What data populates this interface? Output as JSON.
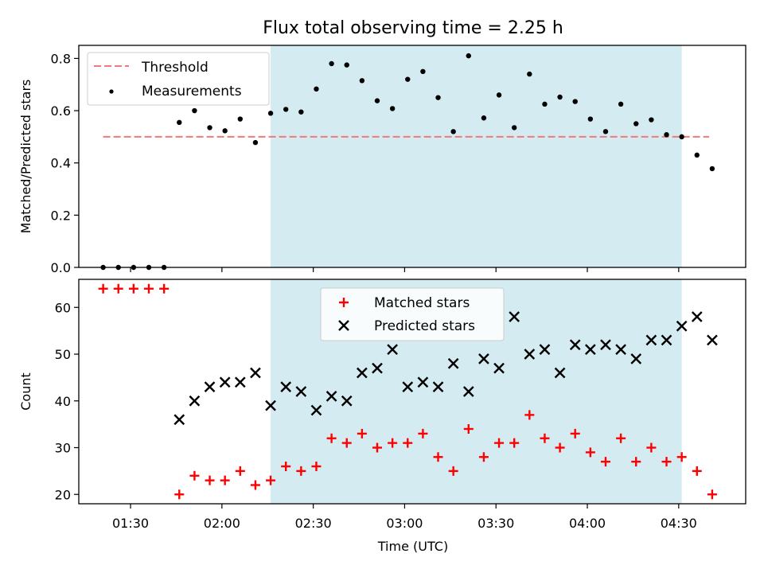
{
  "chart_data": {
    "title": "Flux total observing time = 2.25 h",
    "xlabel": "Time (UTC)",
    "x_unit": "UTC time of day",
    "xlim": [
      "01:13",
      "04:52"
    ],
    "xticks": [
      "01:30",
      "02:00",
      "02:30",
      "03:00",
      "03:30",
      "04:00",
      "04:30"
    ],
    "observing_window": {
      "start": "02:16",
      "end": "04:31",
      "color": "#d4ebf1"
    },
    "panels": [
      {
        "type": "scatter",
        "ylabel": "Matched/Predicted stars",
        "ylim": [
          0,
          0.85
        ],
        "yticks": [
          "0.0",
          "0.2",
          "0.4",
          "0.6",
          "0.8"
        ],
        "grid": false,
        "legend_position": "top-left",
        "threshold": {
          "name": "Threshold",
          "value": 0.5,
          "x_start": "01:21",
          "x_end": "04:40",
          "color": "#f07a7a"
        },
        "series": [
          {
            "name": "Measurements",
            "marker": "dot",
            "color": "#000000",
            "points": [
              [
                "01:21",
                0.0
              ],
              [
                "01:26",
                0.0
              ],
              [
                "01:31",
                0.0
              ],
              [
                "01:36",
                0.0
              ],
              [
                "01:41",
                0.0
              ],
              [
                "01:46",
                0.555
              ],
              [
                "01:51",
                0.6
              ],
              [
                "01:56",
                0.535
              ],
              [
                "02:01",
                0.523
              ],
              [
                "02:06",
                0.568
              ],
              [
                "02:11",
                0.478
              ],
              [
                "02:16",
                0.59
              ],
              [
                "02:21",
                0.605
              ],
              [
                "02:26",
                0.595
              ],
              [
                "02:31",
                0.683
              ],
              [
                "02:36",
                0.78
              ],
              [
                "02:41",
                0.775
              ],
              [
                "02:46",
                0.715
              ],
              [
                "02:51",
                0.638
              ],
              [
                "02:56",
                0.608
              ],
              [
                "03:01",
                0.72
              ],
              [
                "03:06",
                0.75
              ],
              [
                "03:11",
                0.65
              ],
              [
                "03:16",
                0.52
              ],
              [
                "03:21",
                0.81
              ],
              [
                "03:26",
                0.572
              ],
              [
                "03:31",
                0.66
              ],
              [
                "03:36",
                0.535
              ],
              [
                "03:41",
                0.74
              ],
              [
                "03:46",
                0.625
              ],
              [
                "03:51",
                0.652
              ],
              [
                "03:56",
                0.635
              ],
              [
                "04:01",
                0.568
              ],
              [
                "04:06",
                0.52
              ],
              [
                "04:11",
                0.625
              ],
              [
                "04:16",
                0.55
              ],
              [
                "04:21",
                0.565
              ],
              [
                "04:26",
                0.508
              ],
              [
                "04:31",
                0.5
              ],
              [
                "04:36",
                0.43
              ],
              [
                "04:41",
                0.378
              ]
            ]
          }
        ]
      },
      {
        "type": "scatter",
        "ylabel": "Count",
        "ylim": [
          18,
          66
        ],
        "yticks": [
          "20",
          "30",
          "40",
          "50",
          "60"
        ],
        "grid": false,
        "legend_position": "top-center",
        "series": [
          {
            "name": "Matched stars",
            "marker": "plus",
            "color": "#ff0000",
            "points": [
              [
                "01:21",
                64
              ],
              [
                "01:26",
                64
              ],
              [
                "01:31",
                64
              ],
              [
                "01:36",
                64
              ],
              [
                "01:41",
                64
              ],
              [
                "01:46",
                20
              ],
              [
                "01:51",
                24
              ],
              [
                "01:56",
                23
              ],
              [
                "02:01",
                23
              ],
              [
                "02:06",
                25
              ],
              [
                "02:11",
                22
              ],
              [
                "02:16",
                23
              ],
              [
                "02:21",
                26
              ],
              [
                "02:26",
                25
              ],
              [
                "02:31",
                26
              ],
              [
                "02:36",
                32
              ],
              [
                "02:41",
                31
              ],
              [
                "02:46",
                33
              ],
              [
                "02:51",
                30
              ],
              [
                "02:56",
                31
              ],
              [
                "03:01",
                31
              ],
              [
                "03:06",
                33
              ],
              [
                "03:11",
                28
              ],
              [
                "03:16",
                25
              ],
              [
                "03:21",
                34
              ],
              [
                "03:26",
                28
              ],
              [
                "03:31",
                31
              ],
              [
                "03:36",
                31
              ],
              [
                "03:41",
                37
              ],
              [
                "03:46",
                32
              ],
              [
                "03:51",
                30
              ],
              [
                "03:56",
                33
              ],
              [
                "04:01",
                29
              ],
              [
                "04:06",
                27
              ],
              [
                "04:11",
                32
              ],
              [
                "04:16",
                27
              ],
              [
                "04:21",
                30
              ],
              [
                "04:26",
                27
              ],
              [
                "04:31",
                28
              ],
              [
                "04:36",
                25
              ],
              [
                "04:41",
                20
              ]
            ]
          },
          {
            "name": "Predicted stars",
            "marker": "x",
            "color": "#000000",
            "points": [
              [
                "01:46",
                36
              ],
              [
                "01:51",
                40
              ],
              [
                "01:56",
                43
              ],
              [
                "02:01",
                44
              ],
              [
                "02:06",
                44
              ],
              [
                "02:11",
                46
              ],
              [
                "02:16",
                39
              ],
              [
                "02:21",
                43
              ],
              [
                "02:26",
                42
              ],
              [
                "02:31",
                38
              ],
              [
                "02:36",
                41
              ],
              [
                "02:41",
                40
              ],
              [
                "02:46",
                46
              ],
              [
                "02:51",
                47
              ],
              [
                "02:56",
                51
              ],
              [
                "03:01",
                43
              ],
              [
                "03:06",
                44
              ],
              [
                "03:11",
                43
              ],
              [
                "03:16",
                48
              ],
              [
                "03:21",
                42
              ],
              [
                "03:26",
                49
              ],
              [
                "03:31",
                47
              ],
              [
                "03:36",
                58
              ],
              [
                "03:41",
                50
              ],
              [
                "03:46",
                51
              ],
              [
                "03:51",
                46
              ],
              [
                "03:56",
                52
              ],
              [
                "04:01",
                51
              ],
              [
                "04:06",
                52
              ],
              [
                "04:11",
                51
              ],
              [
                "04:16",
                49
              ],
              [
                "04:21",
                53
              ],
              [
                "04:26",
                53
              ],
              [
                "04:31",
                56
              ],
              [
                "04:36",
                58
              ],
              [
                "04:41",
                53
              ]
            ]
          }
        ]
      }
    ]
  }
}
